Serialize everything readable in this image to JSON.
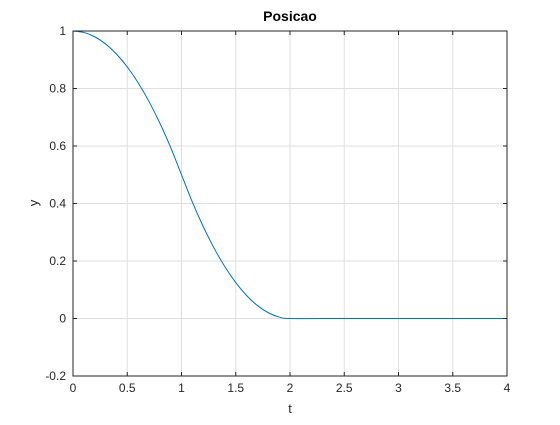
{
  "figure": {
    "background": "#ffffff"
  },
  "chart_data": {
    "type": "line",
    "title": "Posicao",
    "xlabel": "t",
    "ylabel": "y",
    "xlim": [
      0,
      4
    ],
    "ylim": [
      -0.2,
      1
    ],
    "xticks": [
      0,
      0.5,
      1,
      1.5,
      2,
      2.5,
      3,
      3.5,
      4
    ],
    "xtick_labels": [
      "0",
      "0.5",
      "1",
      "1.5",
      "2",
      "2.5",
      "3",
      "3.5",
      "4"
    ],
    "yticks": [
      -0.2,
      0,
      0.2,
      0.4,
      0.6,
      0.8,
      1
    ],
    "ytick_labels": [
      "-0.2",
      "0",
      "0.2",
      "0.4",
      "0.6",
      "0.8",
      "1"
    ],
    "grid": true,
    "series": [
      {
        "color": "#0072bd",
        "x": [
          0,
          0.1,
          0.2,
          0.3,
          0.4,
          0.5,
          0.6,
          0.7,
          0.8,
          0.9,
          1.0,
          1.1,
          1.2,
          1.3,
          1.4,
          1.5,
          1.6,
          1.7,
          1.8,
          1.9,
          2.0,
          2.5,
          3.0,
          3.5,
          4.0
        ],
        "y": [
          1.0,
          0.995,
          0.98,
          0.955,
          0.92,
          0.875,
          0.82,
          0.755,
          0.68,
          0.595,
          0.5,
          0.405,
          0.32,
          0.245,
          0.18,
          0.125,
          0.08,
          0.045,
          0.02,
          0.005,
          0.0,
          0.0,
          0.0,
          0.0,
          0.0
        ]
      }
    ]
  }
}
